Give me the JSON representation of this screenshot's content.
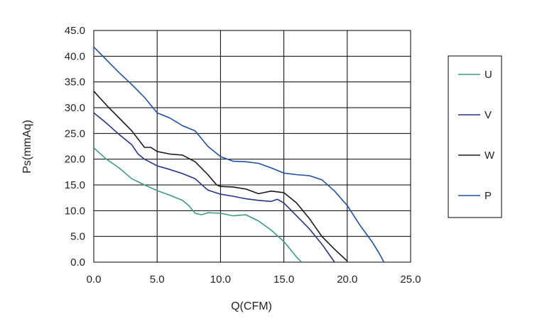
{
  "chart_data": {
    "type": "line",
    "xlabel": "Q(CFM)",
    "ylabel": "Ps(mmAq)",
    "xlim": [
      0,
      25
    ],
    "ylim": [
      0,
      45
    ],
    "xticks": [
      "0.0",
      "5.0",
      "10.0",
      "15.0",
      "20.0",
      "25.0"
    ],
    "yticks": [
      "0.0",
      "5.0",
      "10.0",
      "15.0",
      "20.0",
      "25.0",
      "30.0",
      "35.0",
      "40.0",
      "45.0"
    ],
    "grid": true,
    "legend_position": "right",
    "series": [
      {
        "name": "U",
        "color": "#3f9a86",
        "points": [
          [
            0,
            22.2
          ],
          [
            1,
            20
          ],
          [
            2,
            18.3
          ],
          [
            3,
            16.2
          ],
          [
            4,
            15
          ],
          [
            5,
            13.9
          ],
          [
            6,
            13
          ],
          [
            7,
            12
          ],
          [
            7.5,
            11
          ],
          [
            8,
            9.5
          ],
          [
            8.5,
            9.2
          ],
          [
            9,
            9.6
          ],
          [
            10,
            9.5
          ],
          [
            11,
            9
          ],
          [
            12,
            9.2
          ],
          [
            13,
            8
          ],
          [
            14,
            6.2
          ],
          [
            15,
            4
          ],
          [
            15.5,
            2.5
          ],
          [
            16,
            1
          ],
          [
            16.4,
            0
          ]
        ]
      },
      {
        "name": "V",
        "color": "#23348a",
        "points": [
          [
            0,
            29
          ],
          [
            1,
            27
          ],
          [
            2,
            24.8
          ],
          [
            3,
            22.8
          ],
          [
            3.5,
            21
          ],
          [
            4,
            20
          ],
          [
            5,
            18.7
          ],
          [
            6,
            18
          ],
          [
            7,
            17.2
          ],
          [
            8,
            16.2
          ],
          [
            9,
            14
          ],
          [
            10,
            13.2
          ],
          [
            11,
            12.8
          ],
          [
            12,
            12.3
          ],
          [
            13,
            12
          ],
          [
            14,
            11.8
          ],
          [
            14.5,
            12.2
          ],
          [
            15,
            11.5
          ],
          [
            16,
            9
          ],
          [
            17,
            6.5
          ],
          [
            18,
            3.5
          ],
          [
            19,
            0
          ]
        ]
      },
      {
        "name": "W",
        "color": "#1a1a1a",
        "points": [
          [
            0,
            33.2
          ],
          [
            1,
            30.5
          ],
          [
            2,
            28
          ],
          [
            3,
            25.5
          ],
          [
            4,
            22.3
          ],
          [
            4.5,
            22.3
          ],
          [
            5,
            21.5
          ],
          [
            6,
            21
          ],
          [
            7,
            20.8
          ],
          [
            8,
            19.5
          ],
          [
            9,
            17
          ],
          [
            9.7,
            15
          ],
          [
            10,
            14.7
          ],
          [
            11,
            14.6
          ],
          [
            12,
            14.2
          ],
          [
            13,
            13.3
          ],
          [
            14,
            13.8
          ],
          [
            15,
            13.5
          ],
          [
            16,
            11.5
          ],
          [
            17,
            8.5
          ],
          [
            18,
            5
          ],
          [
            19,
            2.5
          ],
          [
            20,
            0.2
          ]
        ]
      },
      {
        "name": "P",
        "color": "#1f4fa6",
        "points": [
          [
            0,
            41.8
          ],
          [
            1,
            39.3
          ],
          [
            2,
            36.8
          ],
          [
            3,
            34.5
          ],
          [
            4,
            32
          ],
          [
            5,
            29
          ],
          [
            6,
            28
          ],
          [
            7,
            26.5
          ],
          [
            8,
            25.5
          ],
          [
            9,
            22.5
          ],
          [
            10,
            20.5
          ],
          [
            11,
            19.6
          ],
          [
            12,
            19.5
          ],
          [
            13,
            19.2
          ],
          [
            14,
            18.3
          ],
          [
            15,
            17.3
          ],
          [
            16,
            17
          ],
          [
            17,
            16.8
          ],
          [
            18,
            16
          ],
          [
            19,
            13.8
          ],
          [
            20,
            11
          ],
          [
            21,
            7.2
          ],
          [
            22,
            3.8
          ],
          [
            22.5,
            1.8
          ],
          [
            22.9,
            0
          ]
        ]
      }
    ]
  }
}
